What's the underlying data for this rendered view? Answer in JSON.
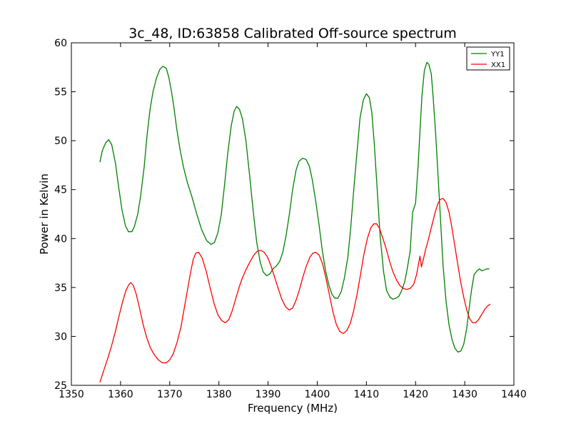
{
  "chart_data": {
    "type": "line",
    "title": "3c_48, ID:63858 Calibrated Off-source spectrum",
    "xlabel": "Frequency (MHz)",
    "ylabel": "Power in Kelvin",
    "xlim": [
      1350,
      1440
    ],
    "ylim": [
      25,
      60
    ],
    "xticks": [
      1350,
      1360,
      1370,
      1380,
      1390,
      1400,
      1410,
      1420,
      1430,
      1440
    ],
    "yticks": [
      25,
      30,
      35,
      40,
      45,
      50,
      55,
      60
    ],
    "grid": false,
    "legend_position": "top-right",
    "series": [
      {
        "name": "YY1",
        "color": "#008000",
        "x": [
          1355.8,
          1356.3,
          1357.0,
          1357.6,
          1358.2,
          1359.0,
          1359.6,
          1360.3,
          1361.0,
          1361.6,
          1362.3,
          1362.8,
          1363.5,
          1364.1,
          1364.8,
          1365.4,
          1366.0,
          1366.6,
          1367.3,
          1368.0,
          1368.6,
          1369.3,
          1369.8,
          1370.3,
          1370.8,
          1371.4,
          1372.1,
          1372.8,
          1373.6,
          1374.5,
          1375.5,
          1376.5,
          1377.5,
          1378.4,
          1379.1,
          1379.8,
          1380.5,
          1381.2,
          1381.8,
          1382.5,
          1383.1,
          1383.6,
          1384.2,
          1384.8,
          1385.5,
          1386.3,
          1387.0,
          1387.7,
          1388.4,
          1389.0,
          1389.7,
          1390.4,
          1391.0,
          1391.7,
          1392.4,
          1393.0,
          1393.7,
          1394.4,
          1395.0,
          1395.7,
          1396.3,
          1397.0,
          1397.7,
          1398.4,
          1399.0,
          1399.7,
          1400.4,
          1401.0,
          1401.7,
          1402.4,
          1403.0,
          1403.6,
          1404.2,
          1404.9,
          1405.5,
          1406.2,
          1406.8,
          1407.4,
          1408.1,
          1408.7,
          1409.4,
          1410.0,
          1410.6,
          1411.1,
          1411.6,
          1412.2,
          1412.8,
          1413.5,
          1414.1,
          1414.8,
          1415.4,
          1416.0,
          1416.6,
          1417.2,
          1417.8,
          1418.3,
          1418.9,
          1419.4,
          1420.0,
          1420.5,
          1420.9,
          1421.3,
          1421.8,
          1422.3,
          1422.7,
          1423.2,
          1423.6,
          1424.1,
          1424.6,
          1425.1,
          1425.6,
          1426.2,
          1426.8,
          1427.4,
          1428.0,
          1428.6,
          1429.2,
          1429.8,
          1430.4,
          1430.9,
          1431.4,
          1431.9,
          1432.5,
          1433.0,
          1433.5,
          1434.0,
          1434.5,
          1435.0
        ],
        "y": [
          47.8,
          49.0,
          49.8,
          50.1,
          49.6,
          47.6,
          45.3,
          42.9,
          41.3,
          40.7,
          40.7,
          41.2,
          42.5,
          44.4,
          47.3,
          50.6,
          53.2,
          55.0,
          56.4,
          57.3,
          57.6,
          57.4,
          56.5,
          55.2,
          53.6,
          51.3,
          49.1,
          47.3,
          45.7,
          44.3,
          42.5,
          40.9,
          39.8,
          39.4,
          39.6,
          40.6,
          42.5,
          45.7,
          48.7,
          51.5,
          53.0,
          53.5,
          53.2,
          52.2,
          50.0,
          46.2,
          42.7,
          39.6,
          37.6,
          36.6,
          36.2,
          36.4,
          36.9,
          37.2,
          37.7,
          38.6,
          40.4,
          42.7,
          45.0,
          47.0,
          47.9,
          48.2,
          48.1,
          47.4,
          46.0,
          43.8,
          41.3,
          38.9,
          36.7,
          35.2,
          34.3,
          33.9,
          33.9,
          34.6,
          35.9,
          38.0,
          41.0,
          44.8,
          48.9,
          52.3,
          54.2,
          54.8,
          54.4,
          52.9,
          49.7,
          45.0,
          40.2,
          36.6,
          34.7,
          34.0,
          33.8,
          33.9,
          34.1,
          34.7,
          35.6,
          36.9,
          38.7,
          42.7,
          43.6,
          47.3,
          51.0,
          54.6,
          57.2,
          58.0,
          57.8,
          56.8,
          54.3,
          50.6,
          46.2,
          41.7,
          37.2,
          33.6,
          31.2,
          29.7,
          28.8,
          28.4,
          28.5,
          29.2,
          30.8,
          32.9,
          34.8,
          36.3,
          36.7,
          36.9,
          36.7,
          36.8,
          36.9,
          36.9
        ],
        "x_tail_note": ""
      },
      {
        "name": "XX1",
        "color": "#ff0000",
        "x": [
          1355.8,
          1356.5,
          1357.3,
          1358.1,
          1358.9,
          1359.7,
          1360.4,
          1361.1,
          1361.7,
          1362.1,
          1362.6,
          1363.2,
          1363.9,
          1364.6,
          1365.3,
          1366.1,
          1366.9,
          1367.7,
          1368.5,
          1369.3,
          1370.0,
          1370.7,
          1371.5,
          1372.3,
          1373.0,
          1373.7,
          1374.3,
          1374.8,
          1375.3,
          1375.9,
          1376.6,
          1377.4,
          1378.2,
          1379.0,
          1379.8,
          1380.6,
          1381.3,
          1382.0,
          1382.7,
          1383.4,
          1384.1,
          1384.8,
          1385.5,
          1386.3,
          1387.1,
          1387.8,
          1388.5,
          1389.2,
          1389.9,
          1390.6,
          1391.3,
          1392.0,
          1392.8,
          1393.6,
          1394.3,
          1395.0,
          1395.7,
          1396.4,
          1397.1,
          1397.8,
          1398.5,
          1399.1,
          1399.7,
          1400.4,
          1401.1,
          1401.8,
          1402.5,
          1403.2,
          1403.9,
          1404.6,
          1405.3,
          1406.0,
          1406.7,
          1407.4,
          1408.1,
          1408.8,
          1409.5,
          1410.2,
          1410.9,
          1411.5,
          1412.1,
          1412.7,
          1413.3,
          1414.0,
          1414.7,
          1415.4,
          1416.1,
          1416.8,
          1417.5,
          1418.2,
          1418.9,
          1419.6,
          1420.2,
          1420.6,
          1420.9,
          1421.2,
          1421.6,
          1422.0,
          1422.5,
          1423.0,
          1423.5,
          1424.0,
          1424.5,
          1425.0,
          1425.6,
          1426.2,
          1426.8,
          1427.4,
          1428.0,
          1428.6,
          1429.2,
          1429.8,
          1430.4,
          1431.0,
          1431.6,
          1432.2,
          1432.8,
          1433.4,
          1434.0,
          1434.6,
          1435.2
        ],
        "y": [
          25.3,
          26.4,
          27.6,
          28.9,
          30.4,
          32.1,
          33.5,
          34.7,
          35.3,
          35.5,
          35.2,
          34.3,
          32.8,
          31.2,
          29.9,
          28.8,
          28.1,
          27.6,
          27.3,
          27.3,
          27.6,
          28.2,
          29.4,
          31.0,
          33.0,
          35.0,
          36.7,
          37.9,
          38.5,
          38.6,
          38.0,
          36.7,
          35.0,
          33.4,
          32.2,
          31.6,
          31.4,
          31.7,
          32.6,
          33.8,
          35.0,
          36.0,
          36.8,
          37.6,
          38.3,
          38.7,
          38.8,
          38.6,
          38.1,
          37.2,
          36.1,
          35.0,
          33.8,
          33.0,
          32.7,
          32.9,
          33.7,
          34.8,
          36.1,
          37.2,
          38.1,
          38.5,
          38.6,
          38.3,
          37.4,
          35.9,
          34.2,
          32.5,
          31.2,
          30.5,
          30.3,
          30.6,
          31.3,
          32.6,
          34.3,
          36.3,
          38.4,
          40.0,
          41.1,
          41.5,
          41.5,
          41.0,
          40.1,
          39.0,
          37.7,
          36.6,
          35.8,
          35.2,
          34.9,
          34.8,
          34.9,
          35.3,
          36.3,
          37.4,
          38.2,
          37.1,
          37.9,
          38.8,
          39.7,
          40.7,
          41.7,
          42.7,
          43.5,
          44.0,
          44.1,
          43.7,
          42.7,
          41.1,
          39.2,
          37.3,
          35.5,
          34.0,
          32.7,
          31.8,
          31.4,
          31.4,
          31.7,
          32.2,
          32.7,
          33.1,
          33.3
        ]
      }
    ]
  }
}
